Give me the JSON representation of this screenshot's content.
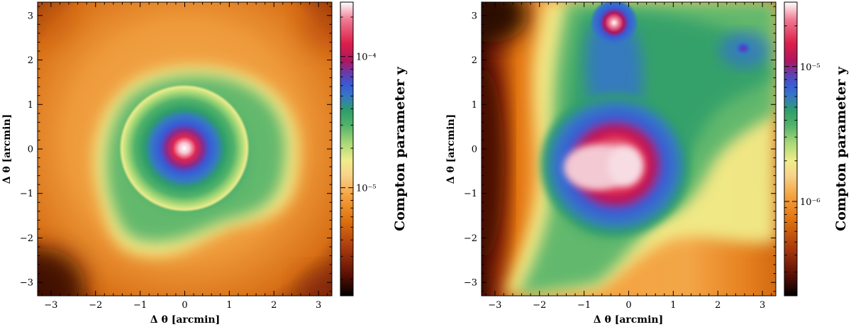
{
  "figure": {
    "panels": [
      {
        "id": "left",
        "xlabel": "Δ θ [arcmin]",
        "ylabel": "Δ θ [arcmin]",
        "colorbar_label": "Compton parameter y"
      },
      {
        "id": "right",
        "xlabel": "Δ θ [arcmin]",
        "ylabel": "Δ θ [arcmin]",
        "colorbar_label": "Compton parameter y"
      }
    ]
  },
  "chart_data": [
    {
      "type": "heatmap",
      "panel": "left",
      "xlabel": "Δ θ [arcmin]",
      "ylabel": "Δ θ [arcmin]",
      "xlim": [
        -3.3,
        3.3
      ],
      "ylim": [
        -3.3,
        3.3
      ],
      "xticks": [
        -3,
        -2,
        -1,
        0,
        1,
        2,
        3
      ],
      "yticks": [
        -3,
        -2,
        -1,
        0,
        1,
        2,
        3
      ],
      "colorbar": {
        "label": "Compton parameter y",
        "scale": "log",
        "range": [
          1.5e-06,
          0.00026
        ],
        "ticks": [
          {
            "value": 1e-05,
            "label": "10⁻⁵"
          },
          {
            "value": 0.0001,
            "label": "10⁻⁴"
          }
        ]
      },
      "colormap": [
        "#000000",
        "#5a0f04",
        "#a8380d",
        "#e0730f",
        "#f5a23f",
        "#f7d38a",
        "#f1ec8a",
        "#a9d977",
        "#52b36a",
        "#2f9e6a",
        "#3577c6",
        "#3a59d6",
        "#6a3aa8",
        "#b0155e",
        "#dc1e4a",
        "#ef7a91",
        "#ffffff"
      ],
      "features": [
        {
          "kind": "peak",
          "x": -0.05,
          "y": 0.0,
          "y_value": 0.00026
        }
      ]
    },
    {
      "type": "heatmap",
      "panel": "right",
      "xlabel": "Δ θ [arcmin]",
      "ylabel": "Δ θ [arcmin]",
      "xlim": [
        -3.3,
        3.3
      ],
      "ylim": [
        -3.3,
        3.3
      ],
      "xticks": [
        -3,
        -2,
        -1,
        0,
        1,
        2,
        3
      ],
      "yticks": [
        -3,
        -2,
        -1,
        0,
        1,
        2,
        3
      ],
      "colorbar": {
        "label": "Compton parameter y",
        "scale": "log",
        "range": [
          2e-07,
          3e-05
        ],
        "ticks": [
          {
            "value": 1e-06,
            "label": "10⁻⁶"
          },
          {
            "value": 1e-05,
            "label": "10⁻⁵"
          }
        ]
      },
      "colormap": [
        "#000000",
        "#5a0f04",
        "#a8380d",
        "#e0730f",
        "#f5a23f",
        "#f7d38a",
        "#f1ec8a",
        "#a9d977",
        "#52b36a",
        "#2f9e6a",
        "#3577c6",
        "#3a59d6",
        "#6a3aa8",
        "#b0155e",
        "#dc1e4a",
        "#ef7a91",
        "#ffffff"
      ],
      "features": [
        {
          "kind": "peak",
          "x": -0.3,
          "y": 0.05,
          "y_value": 3e-05
        },
        {
          "kind": "peak",
          "x": -0.35,
          "y": 2.85,
          "y_value": 2.5e-05
        },
        {
          "kind": "peak",
          "x": 2.6,
          "y": 2.25,
          "y_value": 9e-06
        }
      ]
    }
  ]
}
